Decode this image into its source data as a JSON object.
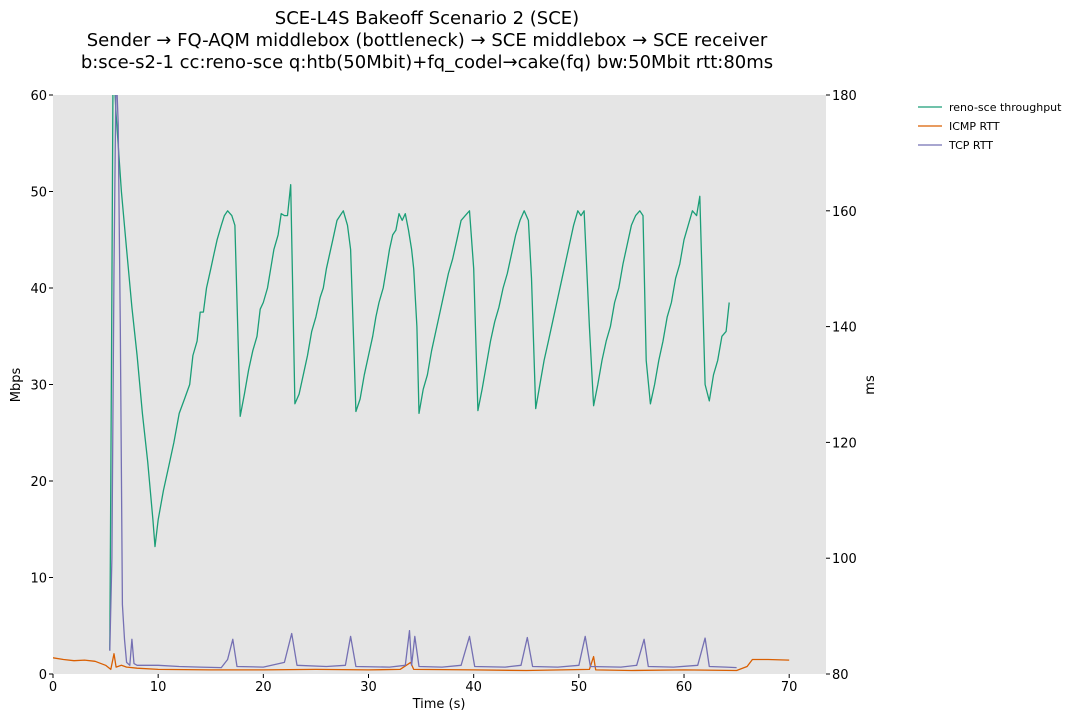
{
  "chart_data": {
    "type": "line",
    "title_lines": [
      "SCE-L4S Bakeoff Scenario 2 (SCE)",
      "Sender → FQ-AQM middlebox (bottleneck) → SCE middlebox → SCE receiver",
      "b:sce-s2-1 cc:reno-sce q:htb(50Mbit)+fq_codel→cake(fq) bw:50Mbit rtt:80ms"
    ],
    "xlabel": "Time (s)",
    "ylabel": "Mbps",
    "y2label": "ms",
    "xlim": [
      0,
      73.5
    ],
    "ylim": [
      0,
      60
    ],
    "y2lim": [
      80,
      180
    ],
    "xticks": [
      0,
      10,
      20,
      30,
      40,
      50,
      60,
      70
    ],
    "yticks": [
      0,
      10,
      20,
      30,
      40,
      50,
      60
    ],
    "y2ticks": [
      80,
      100,
      120,
      140,
      160,
      180
    ],
    "grid": false,
    "legend_position": "outside-top-right",
    "background": "#e5e5e5",
    "series": [
      {
        "name": "reno-sce throughput",
        "axis": "left",
        "color": "#1b9e77",
        "points": [
          [
            5.4,
            2.5
          ],
          [
            5.5,
            20
          ],
          [
            5.6,
            40
          ],
          [
            5.7,
            60
          ],
          [
            5.8,
            62
          ],
          [
            5.9,
            60
          ],
          [
            6.0,
            58
          ],
          [
            6.5,
            50
          ],
          [
            7.0,
            44
          ],
          [
            7.5,
            38
          ],
          [
            8.0,
            33
          ],
          [
            8.5,
            27
          ],
          [
            9.0,
            22
          ],
          [
            9.5,
            16
          ],
          [
            9.7,
            13.2
          ],
          [
            10.0,
            16
          ],
          [
            10.5,
            19
          ],
          [
            11.0,
            21.5
          ],
          [
            11.5,
            24
          ],
          [
            12.0,
            27
          ],
          [
            12.5,
            28.5
          ],
          [
            13.0,
            30
          ],
          [
            13.3,
            33
          ],
          [
            13.7,
            34.5
          ],
          [
            14.0,
            37.5
          ],
          [
            14.3,
            37.5
          ],
          [
            14.6,
            40
          ],
          [
            15.0,
            42
          ],
          [
            15.3,
            43.5
          ],
          [
            15.6,
            45
          ],
          [
            16.0,
            46.5
          ],
          [
            16.3,
            47.5
          ],
          [
            16.6,
            48
          ],
          [
            17.0,
            47.5
          ],
          [
            17.3,
            46.5
          ],
          [
            17.8,
            26.7
          ],
          [
            18.2,
            29
          ],
          [
            18.6,
            31.5
          ],
          [
            19.0,
            33.5
          ],
          [
            19.4,
            35
          ],
          [
            19.7,
            37.8
          ],
          [
            20.0,
            38.5
          ],
          [
            20.4,
            40
          ],
          [
            20.7,
            42
          ],
          [
            21.0,
            44
          ],
          [
            21.4,
            45.5
          ],
          [
            21.7,
            47.7
          ],
          [
            22.0,
            47.5
          ],
          [
            22.3,
            47.5
          ],
          [
            22.6,
            50.7
          ],
          [
            23.0,
            28
          ],
          [
            23.4,
            29
          ],
          [
            23.8,
            31
          ],
          [
            24.2,
            33
          ],
          [
            24.6,
            35.5
          ],
          [
            25.0,
            37
          ],
          [
            25.4,
            39
          ],
          [
            25.7,
            40
          ],
          [
            26.0,
            42
          ],
          [
            26.3,
            43.5
          ],
          [
            26.6,
            45
          ],
          [
            27.0,
            47
          ],
          [
            27.3,
            47.5
          ],
          [
            27.6,
            48
          ],
          [
            28.0,
            46.5
          ],
          [
            28.3,
            44
          ],
          [
            28.6,
            34
          ],
          [
            28.8,
            27.2
          ],
          [
            29.2,
            28.5
          ],
          [
            29.6,
            31
          ],
          [
            30.0,
            33
          ],
          [
            30.4,
            35
          ],
          [
            30.7,
            37
          ],
          [
            31.0,
            38.5
          ],
          [
            31.4,
            40
          ],
          [
            31.7,
            42
          ],
          [
            32.0,
            44
          ],
          [
            32.3,
            45.5
          ],
          [
            32.6,
            46
          ],
          [
            32.9,
            47.7
          ],
          [
            33.2,
            47
          ],
          [
            33.5,
            47.7
          ],
          [
            33.8,
            46
          ],
          [
            34.1,
            44
          ],
          [
            34.3,
            42
          ],
          [
            34.6,
            36
          ],
          [
            34.8,
            27
          ],
          [
            35.2,
            29.5
          ],
          [
            35.6,
            31
          ],
          [
            36.0,
            33.5
          ],
          [
            36.4,
            35.5
          ],
          [
            36.8,
            37.5
          ],
          [
            37.2,
            39.5
          ],
          [
            37.6,
            41.5
          ],
          [
            38.0,
            43
          ],
          [
            38.4,
            45
          ],
          [
            38.8,
            47
          ],
          [
            39.2,
            47.5
          ],
          [
            39.6,
            48
          ],
          [
            40.0,
            42
          ],
          [
            40.4,
            27.3
          ],
          [
            40.8,
            29.5
          ],
          [
            41.2,
            32
          ],
          [
            41.6,
            34.5
          ],
          [
            42.0,
            36.5
          ],
          [
            42.4,
            38
          ],
          [
            42.8,
            40
          ],
          [
            43.2,
            41.5
          ],
          [
            43.6,
            43.5
          ],
          [
            44.0,
            45.5
          ],
          [
            44.4,
            47
          ],
          [
            44.8,
            48
          ],
          [
            45.2,
            47
          ],
          [
            45.5,
            41
          ],
          [
            45.9,
            27.5
          ],
          [
            46.3,
            30
          ],
          [
            46.7,
            32.5
          ],
          [
            47.1,
            34.5
          ],
          [
            47.5,
            36.5
          ],
          [
            47.9,
            38.5
          ],
          [
            48.3,
            40.5
          ],
          [
            48.7,
            42.5
          ],
          [
            49.1,
            44.5
          ],
          [
            49.5,
            46.5
          ],
          [
            49.9,
            48
          ],
          [
            50.2,
            47.5
          ],
          [
            50.5,
            48
          ],
          [
            51.0,
            36
          ],
          [
            51.4,
            27.8
          ],
          [
            51.8,
            30
          ],
          [
            52.2,
            32.5
          ],
          [
            52.6,
            34.5
          ],
          [
            53.0,
            36
          ],
          [
            53.4,
            38.5
          ],
          [
            53.8,
            40
          ],
          [
            54.2,
            42.5
          ],
          [
            54.6,
            44.5
          ],
          [
            55.0,
            46.5
          ],
          [
            55.4,
            47.5
          ],
          [
            55.8,
            48
          ],
          [
            56.1,
            47.5
          ],
          [
            56.4,
            32.5
          ],
          [
            56.8,
            28
          ],
          [
            57.2,
            30
          ],
          [
            57.6,
            32.5
          ],
          [
            58.0,
            34.5
          ],
          [
            58.4,
            37
          ],
          [
            58.8,
            38.5
          ],
          [
            59.2,
            41
          ],
          [
            59.6,
            42.5
          ],
          [
            60.0,
            45
          ],
          [
            60.4,
            46.5
          ],
          [
            60.8,
            48
          ],
          [
            61.2,
            47.5
          ],
          [
            61.5,
            49.5
          ],
          [
            62.0,
            30
          ],
          [
            62.4,
            28.3
          ],
          [
            62.8,
            31
          ],
          [
            63.2,
            32.5
          ],
          [
            63.6,
            35
          ],
          [
            64.0,
            35.5
          ],
          [
            64.3,
            38.5
          ]
        ]
      },
      {
        "name": "ICMP RTT",
        "axis": "right",
        "color": "#d95f02",
        "points": [
          [
            0,
            82.8
          ],
          [
            1,
            82.5
          ],
          [
            2,
            82.3
          ],
          [
            3,
            82.4
          ],
          [
            4,
            82.2
          ],
          [
            5,
            81.5
          ],
          [
            5.5,
            80.8
          ],
          [
            5.8,
            83.5
          ],
          [
            6.0,
            81.2
          ],
          [
            6.5,
            81.5
          ],
          [
            7,
            81.2
          ],
          [
            8,
            81
          ],
          [
            10,
            80.8
          ],
          [
            15,
            80.7
          ],
          [
            20,
            80.7
          ],
          [
            25,
            80.8
          ],
          [
            30,
            80.7
          ],
          [
            33,
            80.8
          ],
          [
            34,
            82
          ],
          [
            34.3,
            80.8
          ],
          [
            40,
            80.7
          ],
          [
            45,
            80.6
          ],
          [
            51,
            80.8
          ],
          [
            51.4,
            83
          ],
          [
            51.6,
            80.7
          ],
          [
            55,
            80.6
          ],
          [
            60,
            80.7
          ],
          [
            65,
            80.6
          ],
          [
            66,
            81.3
          ],
          [
            66.5,
            82.5
          ],
          [
            68,
            82.5
          ],
          [
            70,
            82.4
          ]
        ]
      },
      {
        "name": "TCP RTT",
        "axis": "right",
        "color": "#7570b3",
        "points": [
          [
            5.4,
            84
          ],
          [
            5.6,
            100
          ],
          [
            5.8,
            150
          ],
          [
            6.0,
            185
          ],
          [
            6.2,
            175
          ],
          [
            6.4,
            140
          ],
          [
            6.6,
            92
          ],
          [
            6.8,
            86
          ],
          [
            7.0,
            82
          ],
          [
            7.3,
            81.5
          ],
          [
            7.5,
            86
          ],
          [
            7.7,
            81.8
          ],
          [
            8,
            81.5
          ],
          [
            10,
            81.5
          ],
          [
            12,
            81.3
          ],
          [
            14,
            81.2
          ],
          [
            16,
            81.1
          ],
          [
            16.6,
            82.5
          ],
          [
            17.1,
            86
          ],
          [
            17.5,
            81.3
          ],
          [
            20,
            81.2
          ],
          [
            22,
            82
          ],
          [
            22.7,
            87
          ],
          [
            23.2,
            81.5
          ],
          [
            26,
            81.3
          ],
          [
            27.8,
            81.5
          ],
          [
            28.3,
            86.5
          ],
          [
            28.8,
            81.3
          ],
          [
            32,
            81.2
          ],
          [
            33.5,
            81.5
          ],
          [
            33.9,
            87.5
          ],
          [
            34.1,
            81.5
          ],
          [
            34.4,
            86.5
          ],
          [
            34.8,
            81.3
          ],
          [
            37,
            81.2
          ],
          [
            38.8,
            81.5
          ],
          [
            39.6,
            86.5
          ],
          [
            40.1,
            81.3
          ],
          [
            43,
            81.2
          ],
          [
            44.5,
            81.5
          ],
          [
            45.1,
            86.3
          ],
          [
            45.6,
            81.3
          ],
          [
            48,
            81.2
          ],
          [
            50.0,
            81.5
          ],
          [
            50.6,
            86.5
          ],
          [
            51.1,
            81.3
          ],
          [
            54,
            81.2
          ],
          [
            55.5,
            81.5
          ],
          [
            56.2,
            86
          ],
          [
            56.6,
            81.3
          ],
          [
            59,
            81.2
          ],
          [
            61.3,
            81.5
          ],
          [
            62.0,
            86.2
          ],
          [
            62.4,
            81.3
          ],
          [
            64,
            81.2
          ],
          [
            65,
            81.1
          ]
        ]
      }
    ]
  }
}
